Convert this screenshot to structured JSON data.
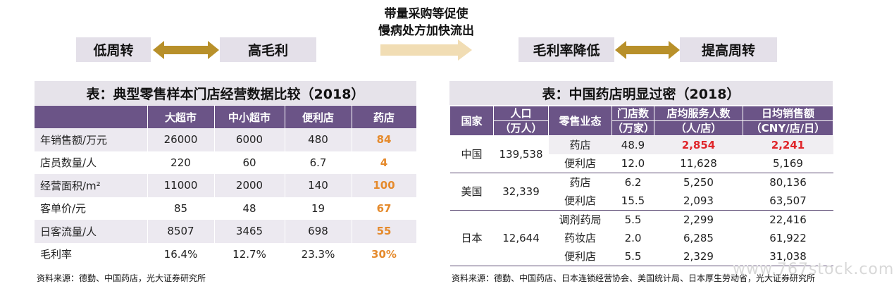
{
  "flow_left": {
    "box1": "低周转",
    "box2": "高毛利"
  },
  "flow_center": {
    "line1": "带量采购等促使",
    "line2": "慢病处方加快流出"
  },
  "flow_right": {
    "box1": "毛利率降低",
    "box2": "提高周转"
  },
  "colors": {
    "box_bg": "#e4e0e9",
    "header_bg": "#6b5487",
    "gold": "#b8902a",
    "orange": "#e58a2c",
    "red": "#e0262b"
  },
  "table1": {
    "title": "表：典型零售样本门店经营数据比较（2018）",
    "headers": [
      "",
      "大超市",
      "中小超市",
      "便利店",
      "药店"
    ],
    "rows": [
      [
        "年销售额/万元",
        "26000",
        "6000",
        "480",
        "84"
      ],
      [
        "店员数量/人",
        "220",
        "60",
        "6.7",
        "4"
      ],
      [
        "经营面积/m²",
        "11000",
        "2000",
        "140",
        "100"
      ],
      [
        "客单价/元",
        "85",
        "48",
        "19",
        "67"
      ],
      [
        "日客流量/人",
        "8507",
        "3465",
        "698",
        "55"
      ],
      [
        "毛利率",
        "16.4%",
        "12.7%",
        "23.3%",
        "30%"
      ]
    ],
    "source": "资料来源：德勤、中国药店，光大证券研究所"
  },
  "table2": {
    "title": "表：中国药店明显过密（2018）",
    "headers": {
      "country": "国家",
      "pop1": "人口",
      "pop2": "（万人）",
      "format": "零售业态",
      "stores1": "门店数",
      "stores2": "（万家）",
      "served1": "店均服务人数",
      "served2": "（人/店）",
      "sales1": "日均销售额",
      "sales2": "（CNY/店/日）"
    },
    "groups": [
      {
        "country": "中国",
        "pop": "139,538",
        "rows": [
          [
            "药店",
            "48.9",
            "2,854",
            "2,241"
          ],
          [
            "便利店",
            "12.0",
            "11,628",
            "5,169"
          ]
        ]
      },
      {
        "country": "美国",
        "pop": "32,339",
        "rows": [
          [
            "药店",
            "6.2",
            "5,250",
            "80,136"
          ],
          [
            "便利店",
            "15.5",
            "2,093",
            "63,507"
          ]
        ]
      },
      {
        "country": "日本",
        "pop": "12,644",
        "rows": [
          [
            "调剂药局",
            "5.5",
            "2,299",
            "22,416"
          ],
          [
            "药妆店",
            "2.0",
            "6,285",
            "61,922"
          ],
          [
            "便利店",
            "5.5",
            "2,329",
            "31,038"
          ]
        ]
      }
    ],
    "source": "资料来源：德勤、中国药店、日本连锁经营协会、美国统计局、日本厚生劳动省，光大证券研究所"
  },
  "watermark": "www.767stock.com"
}
